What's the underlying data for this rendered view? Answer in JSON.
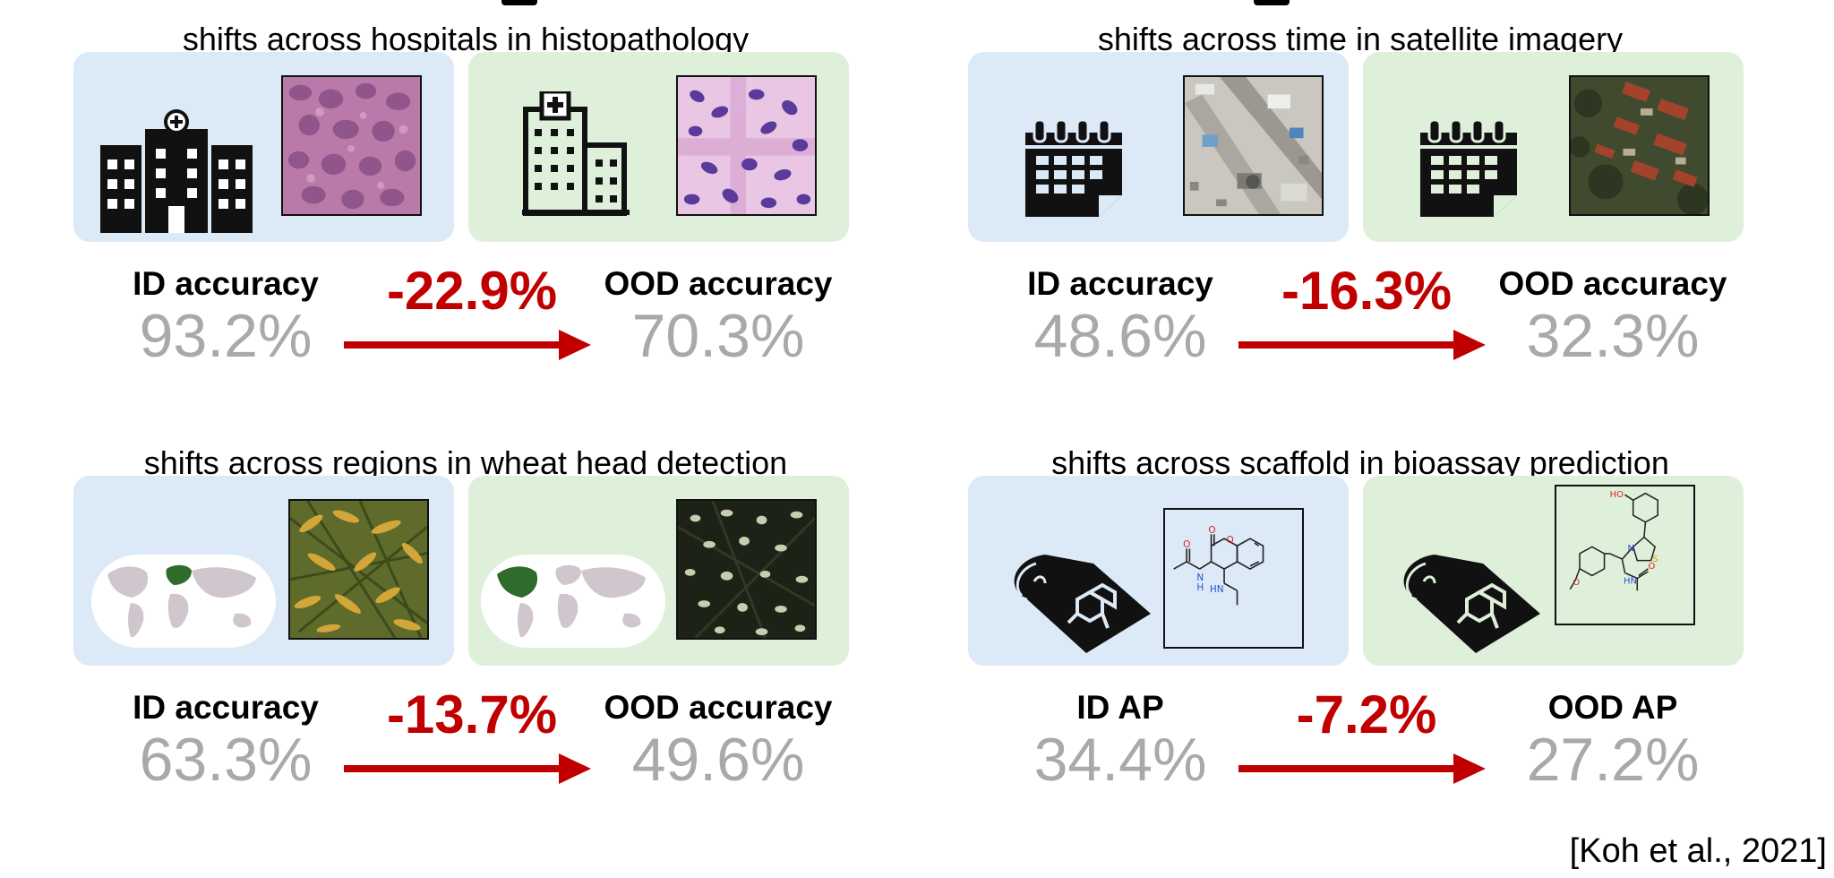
{
  "panels": [
    {
      "title": "shifts across hospitals in histopathology",
      "icon": "hospital-icon",
      "sample": "histopathology-patch",
      "id_label": "ID accuracy",
      "id_value": "93.2%",
      "delta": "-22.9%",
      "ood_label": "OOD accuracy",
      "ood_value": "70.3%"
    },
    {
      "title": "shifts across time in satellite imagery",
      "icon": "calendar-icon",
      "sample": "satellite-image",
      "id_label": "ID accuracy",
      "id_value": "48.6%",
      "delta": "-16.3%",
      "ood_label": "OOD accuracy",
      "ood_value": "32.3%"
    },
    {
      "title": "shifts across regions in wheat head detection",
      "icon": "world-map-icon",
      "sample": "wheat-field-image",
      "id_label": "ID accuracy",
      "id_value": "63.3%",
      "delta": "-13.7%",
      "ood_label": "OOD accuracy",
      "ood_value": "49.6%"
    },
    {
      "title": "shifts across scaffold in bioassay prediction",
      "icon": "molecular-scaffold-icon",
      "sample": "molecule-structure",
      "id_label": "ID AP",
      "id_value": "34.4%",
      "delta": "-7.2%",
      "ood_label": "OOD AP",
      "ood_value": "27.2%",
      "molecule_atoms": {
        "id": [
          "O",
          "O",
          "O",
          "N",
          "H",
          "HN"
        ],
        "ood": [
          "HO",
          "N",
          "S",
          "O",
          "HN",
          "O"
        ]
      }
    }
  ],
  "citation": "[Koh et al., 2021]",
  "colors": {
    "id_box": "#dce9f7",
    "ood_box": "#dff0da",
    "delta": "#c00000",
    "value": "#a9a9a9"
  }
}
